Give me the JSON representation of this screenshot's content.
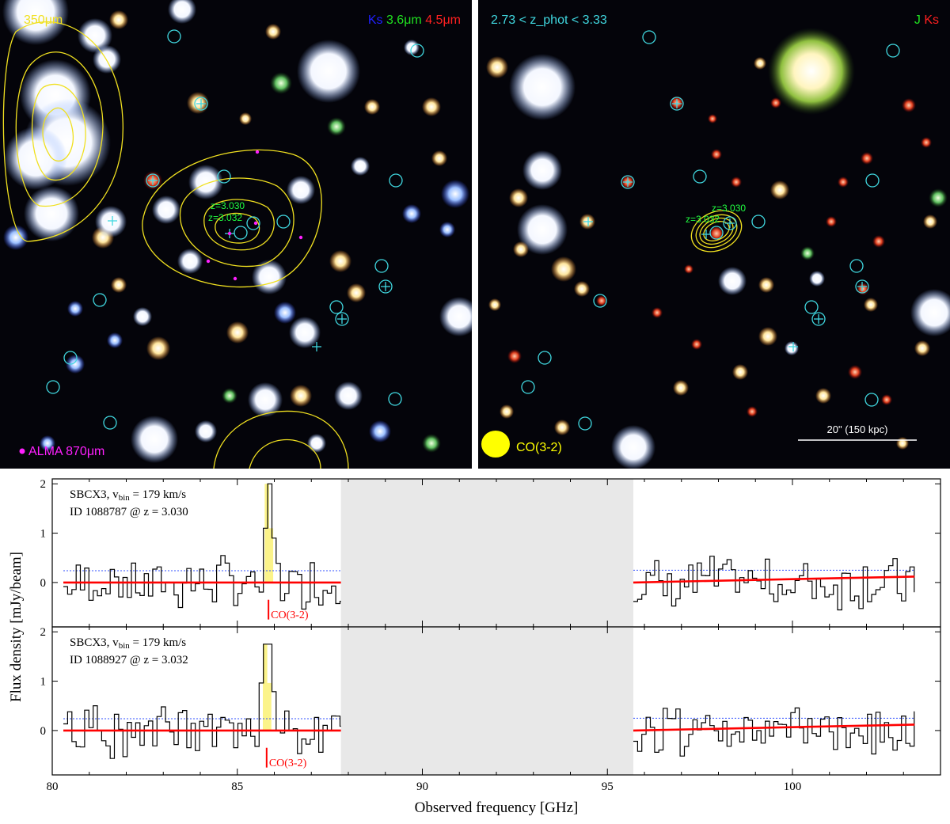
{
  "left_image": {
    "label_350": "350μm",
    "bands": [
      {
        "text": "Ks",
        "color": "#2020ff"
      },
      {
        "text": "3.6μm",
        "color": "#20e020"
      },
      {
        "text": "4.5μm",
        "color": "#ff2020"
      }
    ],
    "alma_label": "ALMA 870μm",
    "z_labels": [
      "z=3.030",
      "z=3.032"
    ]
  },
  "right_image": {
    "zphot_label": "2.73 < z_phot < 3.33",
    "bands": [
      {
        "text": "J",
        "color": "#20e020"
      },
      {
        "text": "Ks",
        "color": "#ff2020"
      }
    ],
    "beam_label": "CO(3-2)",
    "scalebar_label": "20\" (150 kpc)",
    "z_labels": [
      "z=3.030",
      "z=3.032"
    ]
  },
  "colors": {
    "contour": "#f0e020",
    "marker": "#40d8e0",
    "alma": "#ff20ff",
    "zlabel": "#20ff40",
    "fit": "#ff0000",
    "noise": "#3050ff",
    "band_gap": "#e8e8e8",
    "line_fill": "#fbf38a"
  },
  "chart_data": {
    "type": "line",
    "xlabel": "Observed frequency [GHz]",
    "ylabel": "Flux density [mJy/beam]",
    "xlim": [
      80,
      104
    ],
    "x_ticks": [
      80,
      85,
      90,
      95,
      100
    ],
    "ylim": [
      -0.9,
      2.1
    ],
    "y_ticks": [
      0,
      1,
      2
    ],
    "gap": [
      87.8,
      95.7
    ],
    "panels": [
      {
        "field": "SBCX3, v",
        "vbin_text": "bin",
        "vbin_value": " = 179 km/s",
        "id_text": "ID 1088787 @ z = 3.030",
        "line_label": "CO(3-2)",
        "line_freq": 85.8,
        "peak": 2.0,
        "seed": 7
      },
      {
        "field": "SBCX3, v",
        "vbin_text": "bin",
        "vbin_value": " = 179 km/s",
        "id_text": "ID 1088927 @ z = 3.032",
        "line_label": "CO(3-2)",
        "line_freq": 85.75,
        "peak": 1.75,
        "seed": 19
      }
    ]
  }
}
